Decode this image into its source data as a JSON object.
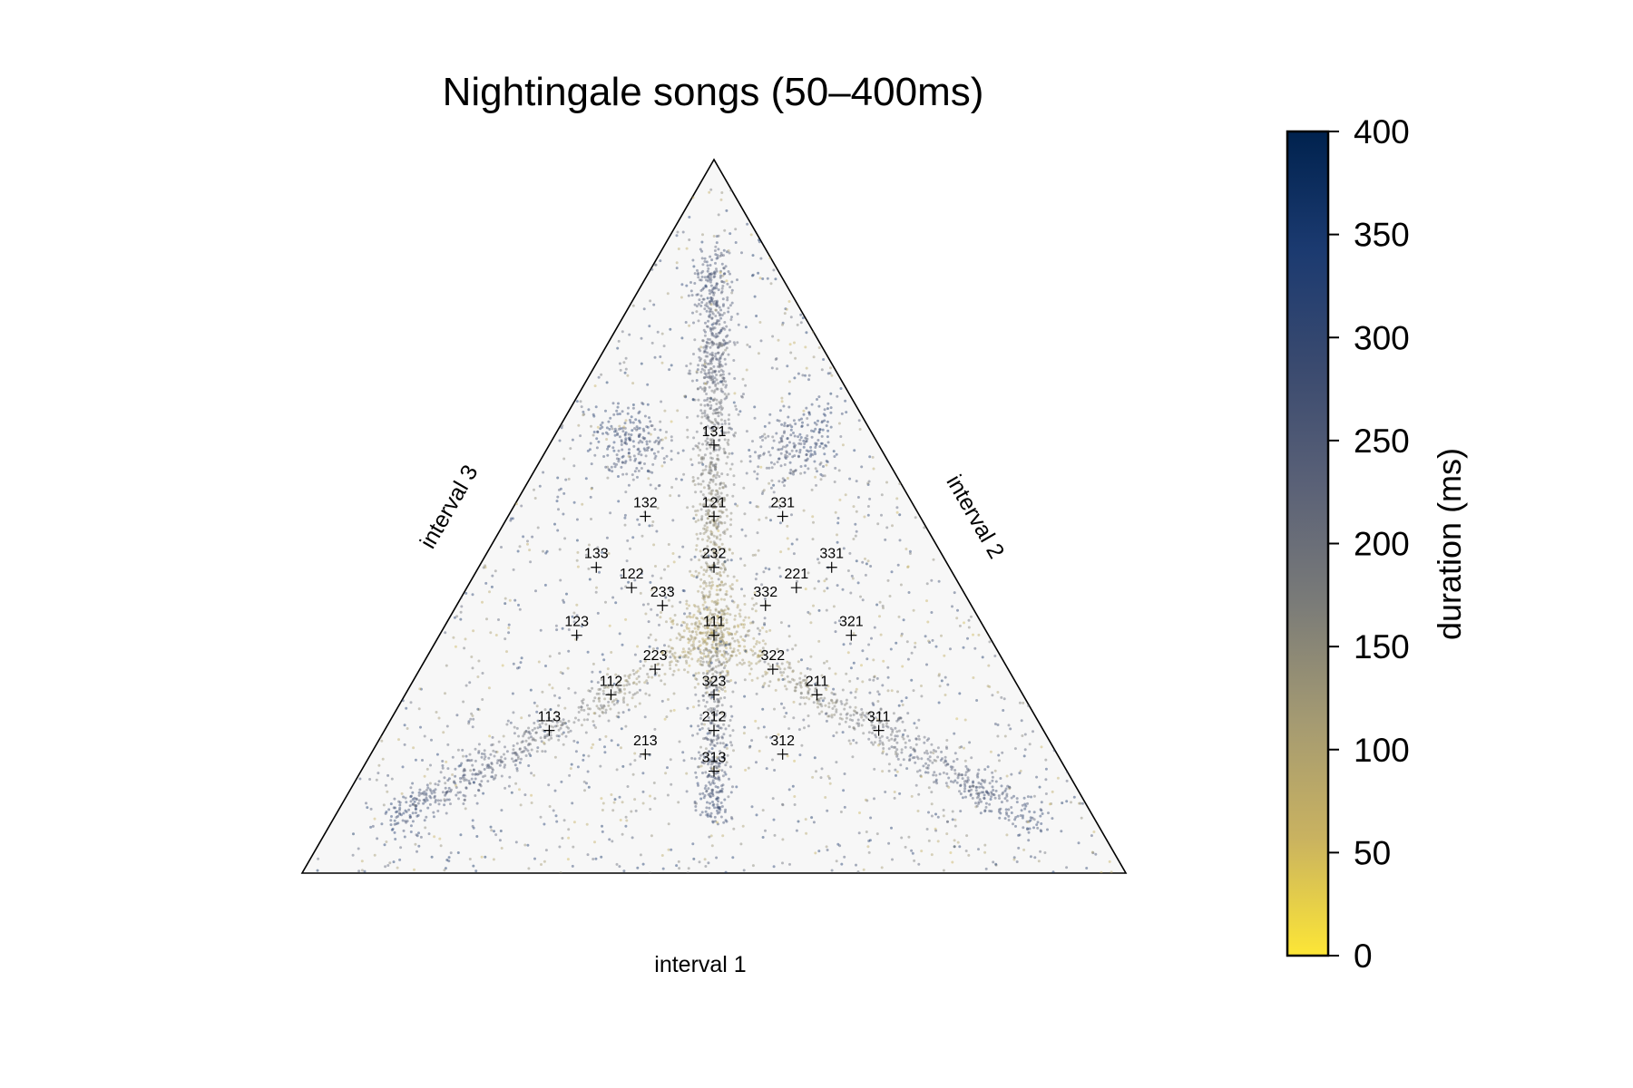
{
  "chart_data": {
    "type": "scatter",
    "subtype": "ternary",
    "title": "Nightingale songs (50–400ms)",
    "axis_labels": {
      "bottom": "interval 1",
      "right": "interval 2",
      "left": "interval 3"
    },
    "triangle_background": "#f7f7f7",
    "markers": [
      {
        "label": "131",
        "ratio": [
          1,
          3,
          1
        ]
      },
      {
        "label": "132",
        "ratio": [
          1,
          3,
          2
        ]
      },
      {
        "label": "121",
        "ratio": [
          1,
          2,
          1
        ]
      },
      {
        "label": "231",
        "ratio": [
          2,
          3,
          1
        ]
      },
      {
        "label": "133",
        "ratio": [
          1,
          3,
          3
        ]
      },
      {
        "label": "232",
        "ratio": [
          2,
          3,
          2
        ]
      },
      {
        "label": "331",
        "ratio": [
          3,
          3,
          1
        ]
      },
      {
        "label": "122",
        "ratio": [
          1,
          2,
          2
        ]
      },
      {
        "label": "221",
        "ratio": [
          2,
          2,
          1
        ]
      },
      {
        "label": "233",
        "ratio": [
          2,
          3,
          3
        ]
      },
      {
        "label": "332",
        "ratio": [
          3,
          3,
          2
        ]
      },
      {
        "label": "123",
        "ratio": [
          1,
          2,
          3
        ]
      },
      {
        "label": "111",
        "ratio": [
          1,
          1,
          1
        ]
      },
      {
        "label": "321",
        "ratio": [
          3,
          2,
          1
        ]
      },
      {
        "label": "223",
        "ratio": [
          2,
          2,
          3
        ]
      },
      {
        "label": "322",
        "ratio": [
          3,
          2,
          2
        ]
      },
      {
        "label": "112",
        "ratio": [
          1,
          1,
          2
        ]
      },
      {
        "label": "323",
        "ratio": [
          3,
          2,
          3
        ]
      },
      {
        "label": "211",
        "ratio": [
          2,
          1,
          1
        ]
      },
      {
        "label": "113",
        "ratio": [
          1,
          1,
          3
        ]
      },
      {
        "label": "212",
        "ratio": [
          2,
          1,
          2
        ]
      },
      {
        "label": "311",
        "ratio": [
          3,
          1,
          1
        ]
      },
      {
        "label": "213",
        "ratio": [
          2,
          1,
          3
        ]
      },
      {
        "label": "312",
        "ratio": [
          3,
          1,
          2
        ]
      },
      {
        "label": "313",
        "ratio": [
          3,
          1,
          3
        ]
      }
    ],
    "point_clusters": [
      {
        "name": "vertical-ridge",
        "from": [
          1,
          1,
          1
        ],
        "to": [
          1,
          12,
          1
        ],
        "count": 900,
        "spread": 0.012,
        "duration_range": [
          60,
          300
        ]
      },
      {
        "name": "left-arm",
        "from": [
          1,
          1,
          1
        ],
        "to": [
          1,
          1,
          12
        ],
        "count": 550,
        "spread": 0.012,
        "duration_range": [
          60,
          330
        ]
      },
      {
        "name": "right-arm",
        "from": [
          1,
          1,
          1
        ],
        "to": [
          12,
          1,
          1
        ],
        "count": 550,
        "spread": 0.012,
        "duration_range": [
          60,
          330
        ]
      },
      {
        "name": "lower-ridge",
        "from": [
          1,
          1,
          1
        ],
        "to": [
          6,
          1,
          6
        ],
        "count": 350,
        "spread": 0.01,
        "duration_range": [
          120,
          320
        ]
      },
      {
        "name": "left-band",
        "from": [
          1,
          4,
          2
        ],
        "to": [
          1,
          10,
          5
        ],
        "count": 200,
        "spread": 0.02,
        "duration_range": [
          200,
          340
        ]
      },
      {
        "name": "right-band",
        "from": [
          2,
          4,
          1
        ],
        "to": [
          5,
          10,
          1
        ],
        "count": 200,
        "spread": 0.02,
        "duration_range": [
          200,
          340
        ]
      },
      {
        "name": "center-cluster",
        "from": [
          1,
          1,
          1
        ],
        "to": [
          1,
          1,
          1
        ],
        "count": 300,
        "spread": 0.025,
        "duration_range": [
          50,
          160
        ]
      },
      {
        "name": "background",
        "from": null,
        "to": null,
        "count": 1600,
        "spread": 0,
        "duration_range": [
          50,
          380
        ]
      }
    ],
    "colorbar": {
      "label": "duration (ms)",
      "min": 0,
      "max": 400,
      "ticks": [
        "0",
        "50",
        "100",
        "150",
        "200",
        "250",
        "300",
        "350",
        "400"
      ],
      "colormap": "cividis_r",
      "color_stops": [
        "#fde636",
        "#c9b260",
        "#a49a72",
        "#7a7b78",
        "#5a6177",
        "#3a4a6f",
        "#1b3a70",
        "#00224e"
      ]
    }
  }
}
